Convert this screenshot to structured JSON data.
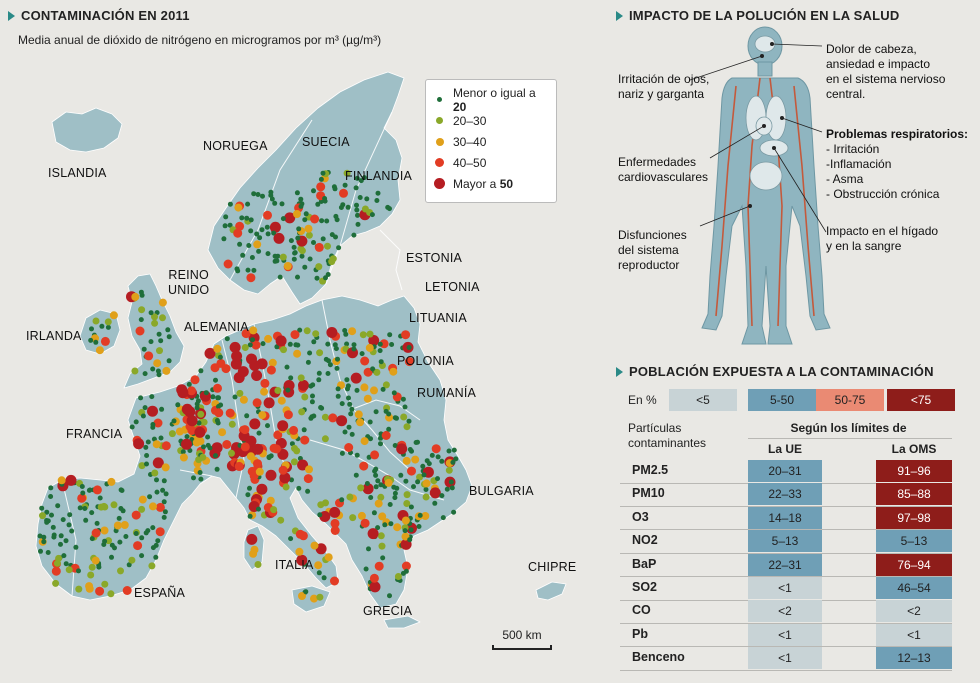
{
  "map": {
    "title": "CONTAMINACIÓN EN 2011",
    "subtitle": "Media anual de dióxido de nitrógeno  en microgramos por m³ (µg/m³)",
    "legend": [
      {
        "label": "Menor o igual a ",
        "bold": "20",
        "color": "#1f6e3a",
        "size": 5
      },
      {
        "label": "20–30",
        "bold": "",
        "color": "#8aa829",
        "size": 7
      },
      {
        "label": "30–40",
        "bold": "",
        "color": "#e0a01a",
        "size": 8
      },
      {
        "label": "40–50",
        "bold": "",
        "color": "#e23c24",
        "size": 9
      },
      {
        "label": "Mayor a ",
        "bold": "50",
        "color": "#b51d22",
        "size": 11
      }
    ],
    "countries": {
      "islandia": "ISLANDIA",
      "noruega": "NORUEGA",
      "suecia": "SUECIA",
      "finlandia": "FINLANDIA",
      "estonia": "ESTONIA",
      "letonia": "LETONIA",
      "lituania": "LITUANIA",
      "reino_unido": "REINO\nUNIDO",
      "irlanda": "IRLANDA",
      "alemania": "ALEMANIA",
      "polonia": "POLONIA",
      "rumania": "RUMANÍA",
      "francia": "FRANCIA",
      "bulgaria": "BULGARIA",
      "italia": "ITALIA",
      "espana": "ESPAÑA",
      "grecia": "GRECIA",
      "chipre": "CHIPRE"
    },
    "scale": "500 km",
    "colors": {
      "land": "#9fbfc6",
      "sea": "#e9e8e4",
      "border": "#ffffff"
    }
  },
  "health": {
    "title": "IMPACTO DE LA POLUCIÓN EN LA SALUD",
    "labels": {
      "head": "Dolor de cabeza,\nansiedad e impacto\nen el sistema nervioso\ncentral.",
      "eyes": "Irritación de ojos,\nnariz y garganta",
      "resp_title": "Problemas respiratorios:",
      "resp_items": "- Irritación\n-Inflamación\n- Asma\n- Obstrucción crónica",
      "cardio": "Enfermedades\ncardiovasculares",
      "liver": "Impacto en el hígado\ny en la sangre",
      "repro": "Disfunciones\ndel sistema\nreproductor"
    }
  },
  "population": {
    "title": "POBLACIÓN EXPUESTA A LA CONTAMINACIÓN",
    "en_pct": "En %",
    "keys": [
      {
        "label": "<5",
        "color": "#c8d3d6",
        "text_color": "#222"
      },
      {
        "label": "5-50",
        "color": "#6f9fb6",
        "text_color": "#222"
      },
      {
        "label": "50-75",
        "color": "#ea8a73",
        "text_color": "#222"
      },
      {
        "label": "<75",
        "color": "#8e1d1a",
        "text_color": "#ffffff"
      }
    ],
    "particles_label": "Partículas\ncontaminantes",
    "segun": "Según los límites de",
    "col_ue": "La UE",
    "col_oms": "La OMS",
    "rows": [
      {
        "name": "PM2.5",
        "ue": "20–31",
        "ue_c": 1,
        "oms": "91–96",
        "oms_c": 3
      },
      {
        "name": "PM10",
        "ue": "22–33",
        "ue_c": 1,
        "oms": "85–88",
        "oms_c": 3
      },
      {
        "name": "O3",
        "ue": "14–18",
        "ue_c": 1,
        "oms": "97–98",
        "oms_c": 3
      },
      {
        "name": "NO2",
        "ue": "5–13",
        "ue_c": 1,
        "oms": "5–13",
        "oms_c": 1
      },
      {
        "name": "BaP",
        "ue": "22–31",
        "ue_c": 1,
        "oms": "76–94",
        "oms_c": 3
      },
      {
        "name": "SO2",
        "ue": "<1",
        "ue_c": 0,
        "oms": "46–54",
        "oms_c": 1
      },
      {
        "name": "CO",
        "ue": "<2",
        "ue_c": 0,
        "oms": "<2",
        "oms_c": 0
      },
      {
        "name": "Pb",
        "ue": "<1",
        "ue_c": 0,
        "oms": "<1",
        "oms_c": 0
      },
      {
        "name": "Benceno",
        "ue": "<1",
        "ue_c": 0,
        "oms": "12–13",
        "oms_c": 1
      }
    ]
  }
}
